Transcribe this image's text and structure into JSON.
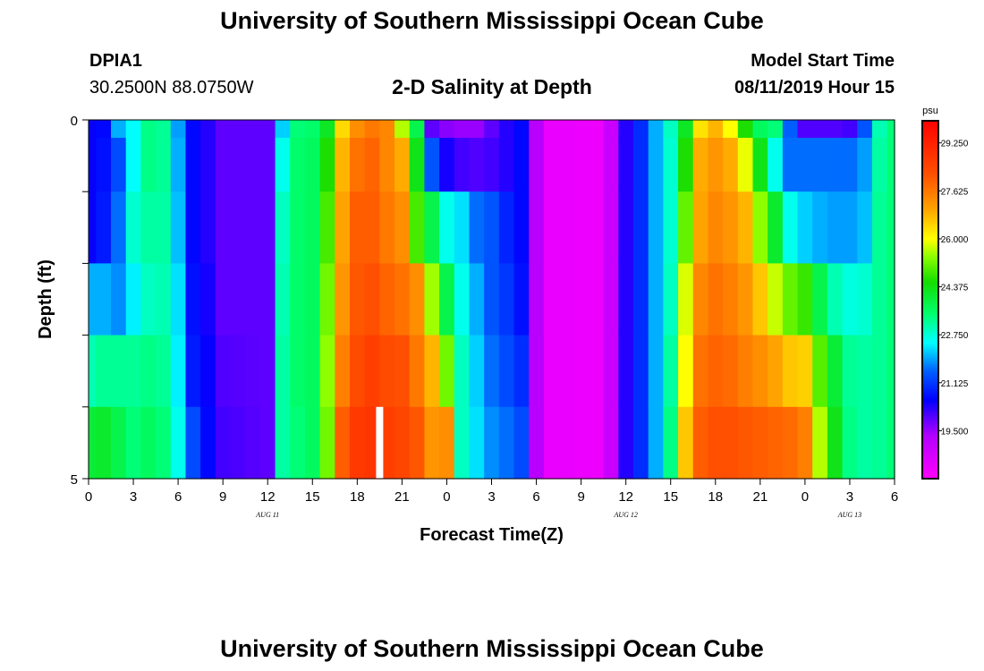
{
  "header": {
    "title": "University of Southern Mississippi Ocean Cube",
    "station_id": "DPIA1",
    "station_coords": "30.2500N 88.0750W",
    "plot_title": "2-D Salinity at Depth",
    "model_start_label": "Model Start Time",
    "model_start_value": "08/11/2019 Hour 15"
  },
  "footer": {
    "title": "University of Southern Mississippi Ocean Cube"
  },
  "chart_data": {
    "type": "heatmap",
    "title": "2-D Salinity at Depth",
    "xlabel": "Forecast Time(Z)",
    "ylabel": "Depth (ft)",
    "ylim": [
      0,
      5
    ],
    "y_ticks": [
      "0",
      "5"
    ],
    "x_tick_labels": [
      "0",
      "3",
      "6",
      "9",
      "12",
      "15",
      "18",
      "21",
      "0",
      "3",
      "6",
      "9",
      "12",
      "15",
      "18",
      "21",
      "0",
      "3",
      "6"
    ],
    "x_hours": [
      0,
      3,
      6,
      9,
      12,
      15,
      18,
      21,
      24,
      27,
      30,
      33,
      36,
      39,
      42,
      45,
      48,
      51,
      54
    ],
    "date_labels": [
      {
        "text": "AUG 11",
        "hour": 12
      },
      {
        "text": "AUG 12",
        "hour": 36
      },
      {
        "text": "AUG 13",
        "hour": 51
      }
    ],
    "colorbar": {
      "unit": "psu",
      "min": 17.875,
      "max": 30.0,
      "ticks": [
        "29.250",
        "27.625",
        "26.000",
        "24.375",
        "22.750",
        "21.125",
        "19.500"
      ],
      "tick_values": [
        29.25,
        27.625,
        26.0,
        24.375,
        22.75,
        21.125,
        19.5
      ]
    },
    "time_step_hours": 1,
    "depth_layers_ft": [
      0.0,
      0.5,
      1.5,
      2.5,
      3.5,
      4.5
    ],
    "missing_marker_hour": 19.5,
    "keyframes": [
      {
        "t": 0,
        "v": [
          20.5,
          20.5,
          20.5,
          22.0,
          23.0,
          24.0
        ]
      },
      {
        "t": 1,
        "v": [
          20.6,
          20.7,
          20.8,
          22.0,
          23.2,
          24.1
        ]
      },
      {
        "t": 2,
        "v": [
          22.0,
          21.3,
          21.6,
          21.8,
          23.2,
          23.8
        ]
      },
      {
        "t": 3,
        "v": [
          22.5,
          22.5,
          22.8,
          22.4,
          23.2,
          23.4
        ]
      },
      {
        "t": 4,
        "v": [
          23.3,
          23.3,
          23.1,
          22.9,
          23.3,
          23.6
        ]
      },
      {
        "t": 5,
        "v": [
          23.2,
          23.2,
          23.1,
          23.0,
          23.2,
          23.4
        ]
      },
      {
        "t": 6,
        "v": [
          21.9,
          22.0,
          22.1,
          22.3,
          22.4,
          22.6
        ]
      },
      {
        "t": 7,
        "v": [
          20.6,
          20.6,
          20.6,
          20.7,
          20.8,
          21.3
        ]
      },
      {
        "t": 8,
        "v": [
          20.3,
          20.3,
          20.3,
          20.4,
          20.5,
          20.6
        ]
      },
      {
        "t": 9,
        "v": [
          19.9,
          19.9,
          19.9,
          19.9,
          20.0,
          20.1
        ]
      },
      {
        "t": 12,
        "v": [
          19.9,
          19.9,
          19.9,
          19.9,
          19.9,
          19.9
        ]
      },
      {
        "t": 13,
        "v": [
          22.2,
          22.6,
          22.9,
          23.0,
          23.1,
          23.1
        ]
      },
      {
        "t": 14,
        "v": [
          23.4,
          23.5,
          23.5,
          23.5,
          23.5,
          23.4
        ]
      },
      {
        "t": 15,
        "v": [
          23.5,
          23.6,
          23.6,
          23.6,
          23.6,
          23.6
        ]
      },
      {
        "t": 16,
        "v": [
          24.2,
          24.6,
          24.9,
          25.2,
          25.4,
          25.2
        ]
      },
      {
        "t": 17,
        "v": [
          26.4,
          26.8,
          27.0,
          27.2,
          27.5,
          28.0
        ]
      },
      {
        "t": 18,
        "v": [
          27.3,
          27.7,
          28.0,
          28.1,
          28.3,
          28.7
        ]
      },
      {
        "t": 19,
        "v": [
          27.6,
          27.9,
          28.0,
          28.2,
          28.6,
          28.8
        ]
      },
      {
        "t": 20,
        "v": [
          27.4,
          27.4,
          27.6,
          27.9,
          28.3,
          28.6
        ]
      },
      {
        "t": 21,
        "v": [
          25.6,
          26.9,
          27.3,
          27.7,
          28.2,
          28.4
        ]
      },
      {
        "t": 22,
        "v": [
          23.8,
          24.3,
          24.9,
          27.3,
          27.6,
          28.1
        ]
      },
      {
        "t": 23,
        "v": [
          19.9,
          21.4,
          23.8,
          25.5,
          26.8,
          27.2
        ]
      },
      {
        "t": 24,
        "v": [
          19.6,
          20.4,
          22.6,
          23.8,
          25.2,
          27.3
        ]
      },
      {
        "t": 25,
        "v": [
          19.5,
          20.1,
          22.3,
          22.6,
          22.9,
          22.9
        ]
      },
      {
        "t": 26,
        "v": [
          19.5,
          20.0,
          21.6,
          22.0,
          22.2,
          22.3
        ]
      },
      {
        "t": 27,
        "v": [
          19.9,
          20.1,
          21.4,
          21.4,
          21.6,
          21.8
        ]
      },
      {
        "t": 28,
        "v": [
          20.3,
          20.3,
          20.9,
          21.1,
          21.3,
          21.6
        ]
      },
      {
        "t": 29,
        "v": [
          20.6,
          20.6,
          20.6,
          20.7,
          21.0,
          21.3
        ]
      },
      {
        "t": 30,
        "v": [
          19.2,
          19.2,
          19.2,
          19.2,
          19.2,
          19.2
        ]
      },
      {
        "t": 31,
        "v": [
          18.3,
          18.3,
          18.3,
          18.3,
          18.3,
          18.3
        ]
      },
      {
        "t": 34,
        "v": [
          18.2,
          18.2,
          18.2,
          18.2,
          18.2,
          18.2
        ]
      },
      {
        "t": 35,
        "v": [
          18.9,
          18.9,
          18.9,
          18.9,
          18.9,
          18.9
        ]
      },
      {
        "t": 36,
        "v": [
          20.3,
          20.3,
          20.3,
          20.3,
          20.3,
          20.3
        ]
      },
      {
        "t": 37,
        "v": [
          21.0,
          21.0,
          21.0,
          21.0,
          21.0,
          21.0
        ]
      },
      {
        "t": 38,
        "v": [
          22.0,
          22.0,
          22.0,
          22.0,
          22.0,
          22.0
        ]
      },
      {
        "t": 39,
        "v": [
          22.9,
          22.8,
          22.8,
          22.9,
          23.1,
          23.3
        ]
      },
      {
        "t": 40,
        "v": [
          24.2,
          24.6,
          25.1,
          25.8,
          26.0,
          26.6
        ]
      },
      {
        "t": 41,
        "v": [
          26.3,
          26.9,
          27.0,
          27.4,
          27.7,
          28.0
        ]
      },
      {
        "t": 42,
        "v": [
          26.8,
          27.2,
          27.4,
          27.7,
          27.9,
          28.2
        ]
      },
      {
        "t": 43,
        "v": [
          26.0,
          26.9,
          27.2,
          27.5,
          27.8,
          28.2
        ]
      },
      {
        "t": 44,
        "v": [
          24.6,
          25.9,
          26.8,
          27.2,
          27.5,
          28.1
        ]
      },
      {
        "t": 45,
        "v": [
          23.6,
          24.3,
          25.4,
          26.6,
          27.3,
          28.0
        ]
      },
      {
        "t": 46,
        "v": [
          23.4,
          22.6,
          24.1,
          25.7,
          27.0,
          27.9
        ]
      },
      {
        "t": 47,
        "v": [
          21.5,
          21.6,
          22.6,
          25.1,
          26.6,
          27.8
        ]
      },
      {
        "t": 48,
        "v": [
          20.0,
          21.6,
          22.2,
          24.8,
          26.5,
          27.5
        ]
      },
      {
        "t": 49,
        "v": [
          20.0,
          21.6,
          22.0,
          23.8,
          25.0,
          25.6
        ]
      },
      {
        "t": 50,
        "v": [
          20.0,
          21.6,
          21.9,
          23.0,
          24.0,
          24.3
        ]
      },
      {
        "t": 51,
        "v": [
          20.1,
          21.6,
          21.9,
          22.7,
          23.2,
          23.3
        ]
      },
      {
        "t": 52,
        "v": [
          21.4,
          21.9,
          22.1,
          22.8,
          23.1,
          23.1
        ]
      },
      {
        "t": 53,
        "v": [
          23.0,
          23.1,
          23.2,
          23.2,
          23.2,
          23.2
        ]
      },
      {
        "t": 54,
        "v": [
          23.4,
          23.4,
          23.4,
          23.4,
          23.4,
          23.4
        ]
      }
    ]
  }
}
